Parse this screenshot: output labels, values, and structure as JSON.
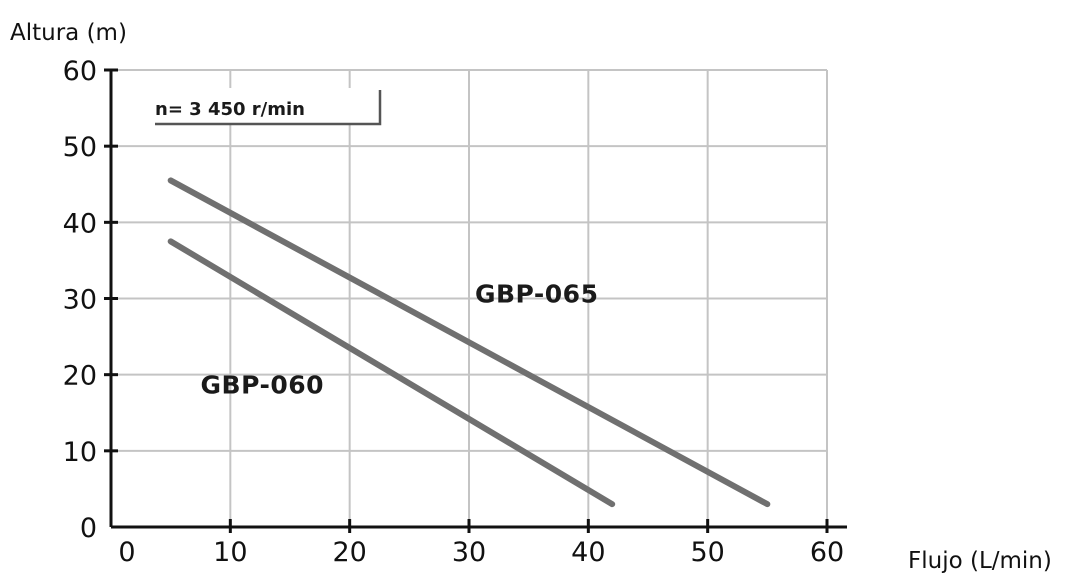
{
  "chart_data": {
    "type": "line",
    "ylabel": "Altura (m)",
    "xlabel": "Flujo (L/min)",
    "xlim": [
      0,
      60
    ],
    "ylim": [
      0,
      60
    ],
    "xticks": [
      0,
      10,
      20,
      30,
      40,
      50,
      60
    ],
    "yticks": [
      0,
      10,
      20,
      30,
      40,
      50,
      60
    ],
    "grid": true,
    "annotation": "n= 3 450 r/min",
    "series": [
      {
        "name": "GBP-065",
        "x": [
          5,
          55
        ],
        "y": [
          45.5,
          3
        ],
        "color": "#707070"
      },
      {
        "name": "GBP-060",
        "x": [
          5,
          42
        ],
        "y": [
          37.5,
          3
        ],
        "color": "#707070"
      }
    ],
    "series_labels": [
      {
        "text": "GBP-065",
        "x": 30.5,
        "y": 29.5
      },
      {
        "text": "GBP-060",
        "x": 7.5,
        "y": 17.5
      }
    ]
  }
}
